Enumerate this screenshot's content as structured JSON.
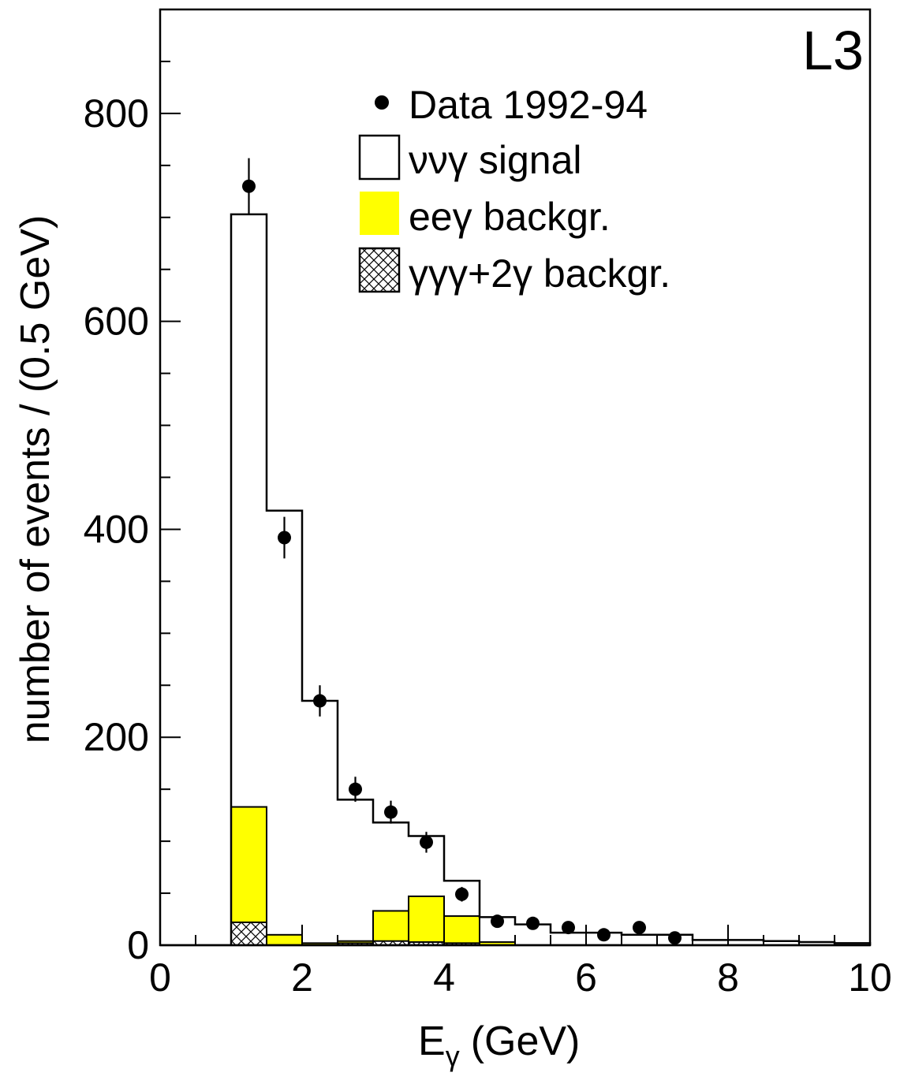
{
  "chart_data": {
    "type": "bar",
    "experiment_label": "L3",
    "xlabel": "E",
    "xlabel_sub": "γ",
    "xlabel_unit": "(GeV)",
    "ylabel": "number of events / (0.5 GeV)",
    "xlim": [
      0,
      10
    ],
    "ylim": [
      0,
      900
    ],
    "x_ticks": [
      0,
      2,
      4,
      6,
      8,
      10
    ],
    "y_ticks": [
      0,
      200,
      400,
      600,
      800
    ],
    "grid": false,
    "legend_position": "top-right",
    "bin_edges": [
      1.0,
      1.5,
      2.0,
      2.5,
      3.0,
      3.5,
      4.0,
      4.5,
      5.0,
      5.5,
      6.0,
      6.5,
      7.0,
      7.5,
      8.0,
      8.5,
      9.0,
      9.5,
      10.0
    ],
    "series": [
      {
        "name": "ννγ signal",
        "style": "outline",
        "values": [
          703,
          418,
          235,
          140,
          118,
          105,
          62,
          27,
          20,
          12,
          12,
          10,
          10,
          5,
          5,
          4,
          3,
          2
        ]
      },
      {
        "name": "eeγ backgr.",
        "style": "filled",
        "color": "#ffff00",
        "values": [
          133,
          10,
          2,
          4,
          33,
          47,
          28,
          3,
          0,
          0,
          0,
          0,
          0,
          0,
          0,
          0,
          0,
          0
        ]
      },
      {
        "name": "γγγ+2γ backgr.",
        "style": "hatched",
        "values": [
          22,
          0,
          0,
          2,
          4,
          3,
          2,
          0,
          0,
          0,
          0,
          0,
          0,
          0,
          0,
          0,
          0,
          0
        ]
      }
    ],
    "data_points": {
      "name": "Data 1992-94",
      "x": [
        1.25,
        1.75,
        2.25,
        2.75,
        3.25,
        3.75,
        4.25,
        4.75,
        5.25,
        5.75,
        6.25,
        6.75,
        7.25
      ],
      "y": [
        730,
        392,
        235,
        150,
        128,
        99,
        49,
        23,
        21,
        17,
        10,
        17,
        7
      ],
      "yerr": [
        27,
        20,
        15,
        12,
        11,
        10,
        7,
        5,
        5,
        4,
        3,
        4,
        3
      ]
    }
  }
}
